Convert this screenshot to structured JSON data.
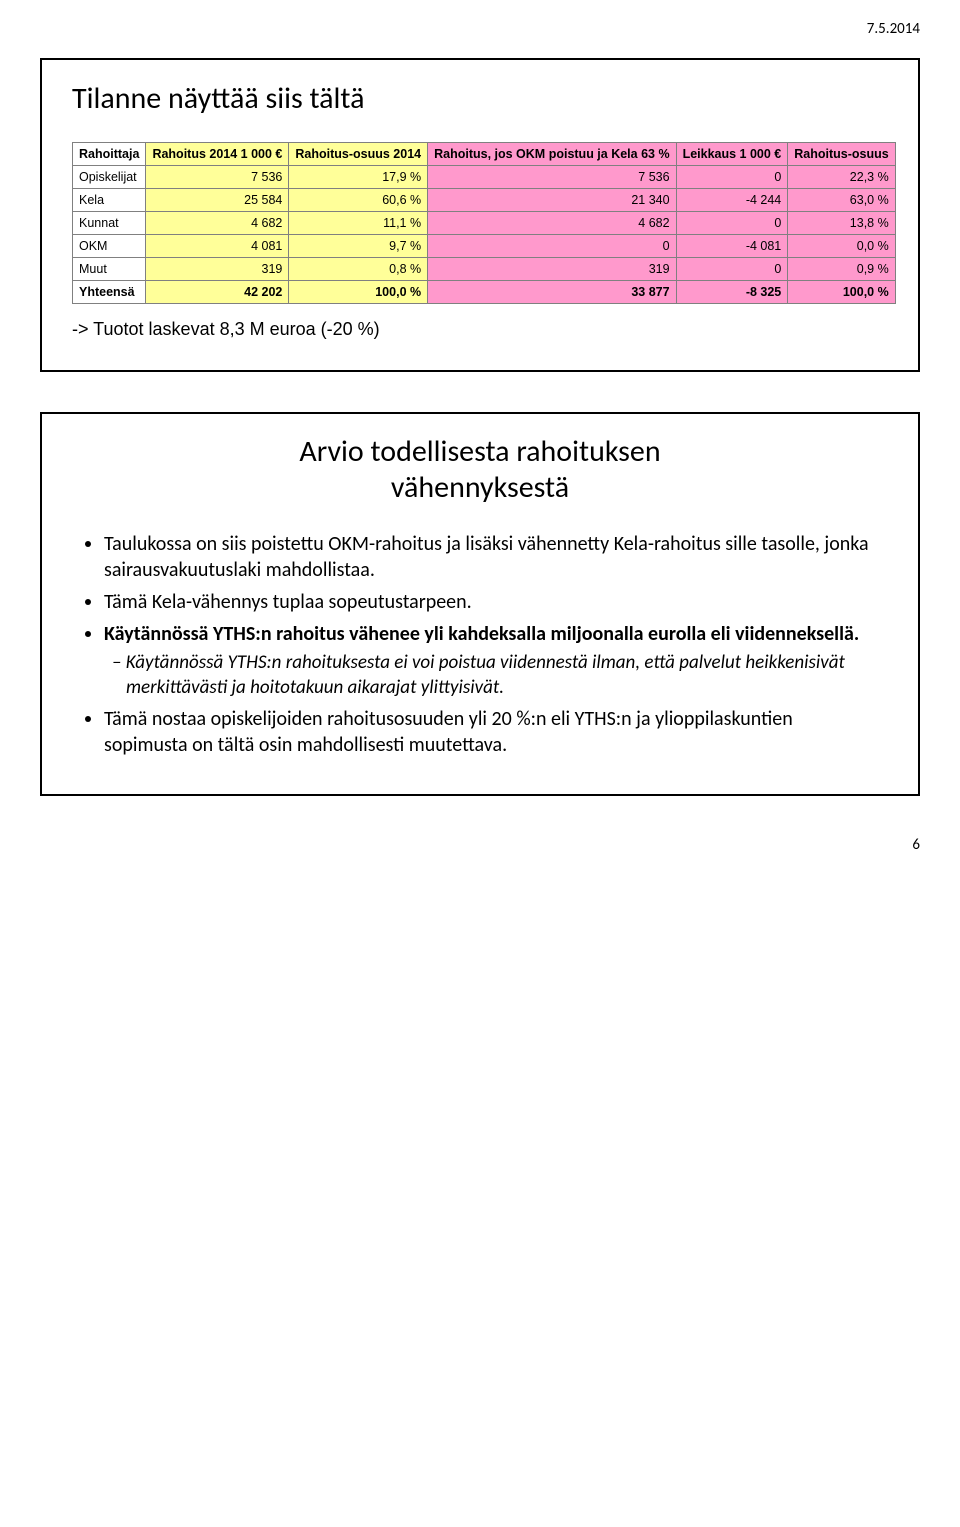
{
  "page_date": "7.5.2014",
  "page_number": "6",
  "slide1": {
    "title": "Tilanne näyttää siis tältä",
    "note": "-> Tuotot laskevat 8,3 M euroa (-20 %)",
    "table": {
      "headers": [
        "Rahoittaja",
        "Rahoitus 2014 1 000 €",
        "Rahoitus-osuus 2014",
        "Rahoitus, jos OKM poistuu ja Kela 63 %",
        "Leikkaus 1 000 €",
        "Rahoitus-osuus"
      ],
      "rows": [
        [
          "Opiskelijat",
          "7 536",
          "17,9 %",
          "7 536",
          "0",
          "22,3 %"
        ],
        [
          "Kela",
          "25 584",
          "60,6 %",
          "21 340",
          "-4 244",
          "63,0 %"
        ],
        [
          "Kunnat",
          "4 682",
          "11,1 %",
          "4 682",
          "0",
          "13,8 %"
        ],
        [
          "OKM",
          "4 081",
          "9,7 %",
          "0",
          "-4 081",
          "0,0 %"
        ],
        [
          "Muut",
          "319",
          "0,8 %",
          "319",
          "0",
          "0,9 %"
        ],
        [
          "Yhteensä",
          "42 202",
          "100,0 %",
          "33 877",
          "-8 325",
          "100,0 %"
        ]
      ]
    }
  },
  "slide2": {
    "title_line1": "Arvio todellisesta rahoituksen",
    "title_line2": "vähennyksestä",
    "b1": "Taulukossa on siis poistettu OKM-rahoitus ja lisäksi vähennetty Kela-rahoitus sille tasolle, jonka sairausvakuutuslaki mahdollistaa.",
    "b2": "Tämä Kela-vähennys tuplaa sopeutustarpeen.",
    "b3": "Käytännössä YTHS:n rahoitus vähenee yli kahdeksalla miljoonalla eurolla eli viidenneksellä.",
    "b3a": "Käytännössä YTHS:n rahoituksesta ei voi poistua viidennestä ilman, että palvelut heikkenisivät merkittävästi ja hoitotakuun aikarajat ylittyisivät.",
    "b4": "Tämä nostaa opiskelijoiden rahoitusosuuden yli 20 %:n eli YTHS:n ja ylioppilaskuntien sopimusta on tältä osin mahdollisesti muutettava."
  }
}
